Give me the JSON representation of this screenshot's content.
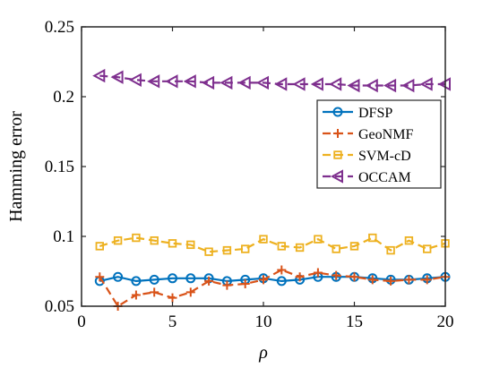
{
  "chart_data": {
    "type": "line",
    "title": "",
    "xlabel": "ρ",
    "ylabel": "Hamming error",
    "xlim": [
      0,
      20
    ],
    "ylim": [
      0.05,
      0.25
    ],
    "xticks": [
      0,
      5,
      10,
      15,
      20
    ],
    "xtick_labels": [
      "0",
      "5",
      "10",
      "15",
      "20"
    ],
    "yticks": [
      0.05,
      0.1,
      0.15,
      0.2,
      0.25
    ],
    "ytick_labels": [
      "0.05",
      "0.1",
      "0.15",
      "0.2",
      "0.25"
    ],
    "grid": false,
    "legend_position": "right",
    "x": [
      1,
      2,
      3,
      4,
      5,
      6,
      7,
      8,
      9,
      10,
      11,
      12,
      13,
      14,
      15,
      16,
      17,
      18,
      19,
      20
    ],
    "series": [
      {
        "name": "DFSP",
        "color": "#0072BD",
        "marker": "circle",
        "line": "solid",
        "values": [
          0.068,
          0.071,
          0.068,
          0.069,
          0.07,
          0.07,
          0.07,
          0.068,
          0.069,
          0.07,
          0.068,
          0.069,
          0.071,
          0.071,
          0.071,
          0.07,
          0.069,
          0.069,
          0.07,
          0.071
        ]
      },
      {
        "name": "GeoNMF",
        "color": "#D95319",
        "marker": "plus",
        "line": "dashed",
        "values": [
          0.071,
          0.05,
          0.058,
          0.06,
          0.056,
          0.06,
          0.068,
          0.065,
          0.066,
          0.069,
          0.076,
          0.071,
          0.074,
          0.072,
          0.071,
          0.069,
          0.068,
          0.069,
          0.069,
          0.071
        ]
      },
      {
        "name": "SVM-cD",
        "color": "#EDB120",
        "marker": "square",
        "line": "dashed",
        "values": [
          0.093,
          0.097,
          0.099,
          0.097,
          0.095,
          0.094,
          0.089,
          0.09,
          0.091,
          0.098,
          0.093,
          0.092,
          0.098,
          0.091,
          0.093,
          0.099,
          0.09,
          0.097,
          0.091,
          0.095
        ]
      },
      {
        "name": "OCCAM",
        "color": "#7E2F8E",
        "marker": "triangle-left",
        "line": "dashed",
        "values": [
          0.215,
          0.214,
          0.212,
          0.211,
          0.211,
          0.211,
          0.21,
          0.21,
          0.21,
          0.21,
          0.209,
          0.209,
          0.209,
          0.209,
          0.208,
          0.208,
          0.208,
          0.208,
          0.209,
          0.209
        ]
      }
    ]
  }
}
